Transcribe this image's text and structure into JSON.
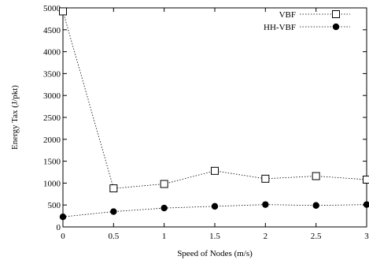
{
  "chart_data": {
    "type": "line",
    "xlabel": "Speed of Nodes (m/s)",
    "ylabel": "Energy Tax (J/pkt)",
    "xlim": [
      0,
      3
    ],
    "ylim": [
      0,
      5000
    ],
    "x_ticks": [
      0,
      0.5,
      1,
      1.5,
      2,
      2.5,
      3
    ],
    "y_ticks": [
      0,
      500,
      1000,
      1500,
      2000,
      2500,
      3000,
      3500,
      4000,
      4500,
      5000
    ],
    "x_tick_labels": [
      "0",
      "0.5",
      "1",
      "1.5",
      "2",
      "2.5",
      "3"
    ],
    "y_tick_labels": [
      "0",
      "500",
      "1000",
      "1500",
      "2000",
      "2500",
      "3000",
      "3500",
      "4000",
      "4500",
      "5000"
    ],
    "grid": false,
    "legend_position": "top-right",
    "series": [
      {
        "name": "VBF",
        "marker": "open-square",
        "x": [
          0,
          0.5,
          1,
          1.5,
          2,
          2.5,
          3
        ],
        "y": [
          4920,
          880,
          980,
          1280,
          1100,
          1160,
          1080
        ]
      },
      {
        "name": "HH-VBF",
        "marker": "filled-circle",
        "x": [
          0,
          0.5,
          1,
          1.5,
          2,
          2.5,
          3
        ],
        "y": [
          230,
          350,
          430,
          470,
          510,
          490,
          510
        ]
      }
    ]
  }
}
